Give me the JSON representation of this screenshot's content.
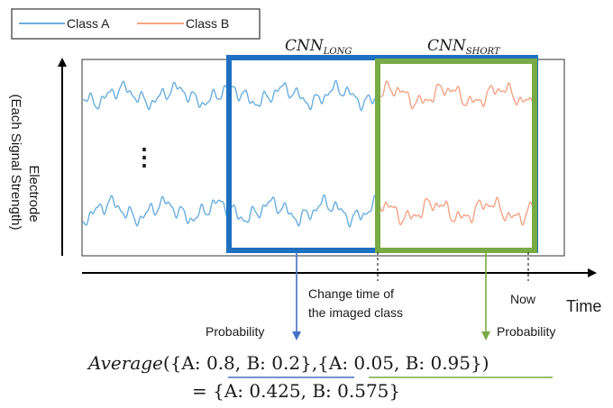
{
  "legend": {
    "class_a": {
      "label": "Class A",
      "color": "#6aaee0"
    },
    "class_b": {
      "label": "Class B",
      "color": "#f4a384"
    }
  },
  "windows": {
    "long": {
      "base": "CNN",
      "sub": "LONG",
      "color": "#1f6fc0"
    },
    "short": {
      "base": "CNN",
      "sub": "SHORT",
      "color": "#78ab45"
    }
  },
  "axes": {
    "y_label_line1": "Electrode",
    "y_label_line2": "(Each Signal Strength)",
    "x_label": "Time"
  },
  "annotations": {
    "change_line1": "Change time of",
    "change_line2": "the imaged class",
    "now": "Now",
    "ellipsis": "⋮"
  },
  "probability": {
    "label_long": "Probability",
    "label_short": "Probability"
  },
  "formula": {
    "func": "Average",
    "open": "(",
    "long_result": "{A: 0.8, B: 0.2}",
    "comma": ",",
    "short_result": "{A: 0.05, B: 0.95}",
    "close": ")",
    "equals_line": "= {A: 0.425, B: 0.575}"
  }
}
